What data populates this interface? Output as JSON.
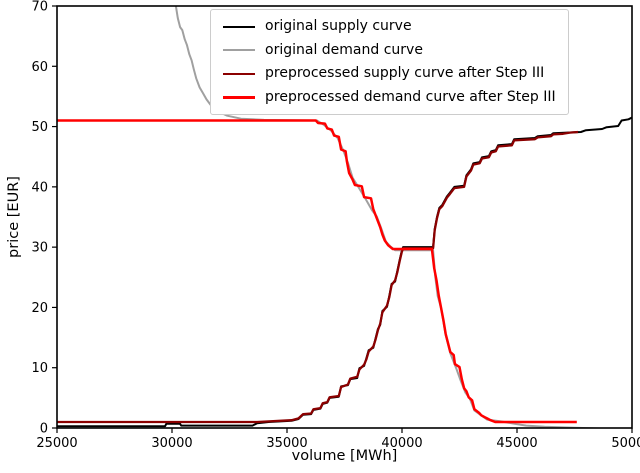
{
  "figure": {
    "background": "#ffffff",
    "border_color": "#000000"
  },
  "chart_data": {
    "type": "line",
    "title": "",
    "xlabel": "volume [MWh]",
    "ylabel": "price [EUR]",
    "xlim": [
      25000,
      50000
    ],
    "ylim": [
      0,
      70
    ],
    "xticks": [
      25000,
      30000,
      35000,
      40000,
      45000,
      50000
    ],
    "yticks": [
      0,
      10,
      20,
      30,
      40,
      50,
      60,
      70
    ],
    "grid": false,
    "legend_position": "upper center",
    "legend_frame": true,
    "series": [
      {
        "name": "original supply curve",
        "color": "#000000",
        "linewidth": 2,
        "points": [
          [
            25000,
            0.3
          ],
          [
            29700,
            0.3
          ],
          [
            29750,
            0.7
          ],
          [
            30350,
            0.7
          ],
          [
            30400,
            0.4
          ],
          [
            33500,
            0.4
          ],
          [
            33700,
            0.8
          ],
          [
            34200,
            1.0
          ],
          [
            35200,
            1.2
          ],
          [
            35500,
            1.5
          ],
          [
            35700,
            2.2
          ],
          [
            36050,
            2.3
          ],
          [
            36150,
            3.0
          ],
          [
            36450,
            3.2
          ],
          [
            36550,
            4.0
          ],
          [
            36750,
            4.2
          ],
          [
            36850,
            5.0
          ],
          [
            37250,
            5.2
          ],
          [
            37350,
            6.9
          ],
          [
            37650,
            7.1
          ],
          [
            37750,
            8.1
          ],
          [
            38050,
            8.3
          ],
          [
            38150,
            9.9
          ],
          [
            38350,
            10.3
          ],
          [
            38450,
            11.6
          ],
          [
            38550,
            12.9
          ],
          [
            38750,
            13.3
          ],
          [
            38850,
            14.9
          ],
          [
            38950,
            16.4
          ],
          [
            39050,
            17.1
          ],
          [
            39150,
            19.4
          ],
          [
            39350,
            20.1
          ],
          [
            39450,
            21.9
          ],
          [
            39550,
            23.9
          ],
          [
            39700,
            24.3
          ],
          [
            39800,
            26.1
          ],
          [
            39900,
            27.9
          ],
          [
            39990,
            29.4
          ],
          [
            40050,
            30
          ],
          [
            41350,
            30
          ],
          [
            41420,
            33
          ],
          [
            41520,
            35
          ],
          [
            41620,
            36.5
          ],
          [
            41750,
            37
          ],
          [
            41950,
            38.4
          ],
          [
            42080,
            39
          ],
          [
            42280,
            40
          ],
          [
            42700,
            40.2
          ],
          [
            42800,
            41.9
          ],
          [
            43000,
            42.9
          ],
          [
            43100,
            43.9
          ],
          [
            43380,
            44.1
          ],
          [
            43480,
            44.9
          ],
          [
            43780,
            45.1
          ],
          [
            43880,
            45.9
          ],
          [
            44080,
            46.1
          ],
          [
            44180,
            46.9
          ],
          [
            44780,
            47.1
          ],
          [
            44880,
            47.9
          ],
          [
            45780,
            48.1
          ],
          [
            45900,
            48.4
          ],
          [
            46480,
            48.6
          ],
          [
            46580,
            48.9
          ],
          [
            47780,
            49.1
          ],
          [
            48000,
            49.4
          ],
          [
            48700,
            49.6
          ],
          [
            48900,
            49.9
          ],
          [
            49400,
            50.1
          ],
          [
            49550,
            51.0
          ],
          [
            49850,
            51.2
          ],
          [
            50000,
            51.5
          ]
        ]
      },
      {
        "name": "original demand curve",
        "color": "#a0a0a0",
        "linewidth": 2,
        "points": [
          [
            30150,
            70.5
          ],
          [
            30250,
            68
          ],
          [
            30350,
            66.5
          ],
          [
            30450,
            66
          ],
          [
            30550,
            64.5
          ],
          [
            30650,
            63.5
          ],
          [
            30750,
            62
          ],
          [
            30850,
            61
          ],
          [
            30950,
            59.5
          ],
          [
            31050,
            58
          ],
          [
            31200,
            56.5
          ],
          [
            31350,
            55.5
          ],
          [
            31500,
            54.5
          ],
          [
            31700,
            53.5
          ],
          [
            32000,
            52.5
          ],
          [
            32400,
            51.8
          ],
          [
            33000,
            51.3
          ],
          [
            34000,
            51.1
          ],
          [
            36300,
            51.0
          ],
          [
            36600,
            50.3
          ],
          [
            36900,
            49.4
          ],
          [
            37200,
            48.1
          ],
          [
            37450,
            46
          ],
          [
            37650,
            44
          ],
          [
            37850,
            41.5
          ],
          [
            38100,
            40
          ],
          [
            38400,
            38.1
          ],
          [
            38700,
            36.1
          ],
          [
            38900,
            35.1
          ],
          [
            39100,
            33.1
          ],
          [
            39300,
            30.9
          ],
          [
            39500,
            30.1
          ],
          [
            39700,
            29.5
          ],
          [
            41350,
            29.5
          ],
          [
            41450,
            24.9
          ],
          [
            41550,
            21.9
          ],
          [
            41700,
            19.9
          ],
          [
            41900,
            15.4
          ],
          [
            42100,
            12.4
          ],
          [
            42350,
            10
          ],
          [
            42550,
            7.9
          ],
          [
            42750,
            5.9
          ],
          [
            42950,
            4.9
          ],
          [
            43150,
            2.9
          ],
          [
            43400,
            2.2
          ],
          [
            43700,
            1.4
          ],
          [
            44300,
            1.1
          ],
          [
            44900,
            0.7
          ],
          [
            45400,
            0.4
          ],
          [
            46200,
            0.2
          ],
          [
            47500,
            0.05
          ],
          [
            48800,
            -0.1
          ],
          [
            50000,
            -0.4
          ]
        ]
      },
      {
        "name": "preprocessed supply curve after Step III",
        "color": "#8b0000",
        "linewidth": 2.3,
        "points": [
          [
            25000,
            1.0
          ],
          [
            33700,
            1.0
          ],
          [
            34200,
            1.1
          ],
          [
            35200,
            1.3
          ],
          [
            35500,
            1.6
          ],
          [
            35700,
            2.3
          ],
          [
            36050,
            2.4
          ],
          [
            36150,
            3.1
          ],
          [
            36450,
            3.3
          ],
          [
            36550,
            4.1
          ],
          [
            36750,
            4.3
          ],
          [
            36850,
            5.1
          ],
          [
            37250,
            5.3
          ],
          [
            37350,
            6.8
          ],
          [
            37650,
            7.2
          ],
          [
            37750,
            8.2
          ],
          [
            38050,
            8.5
          ],
          [
            38150,
            9.7
          ],
          [
            38350,
            10.5
          ],
          [
            38450,
            11.4
          ],
          [
            38550,
            12.7
          ],
          [
            38750,
            13.5
          ],
          [
            38850,
            14.7
          ],
          [
            38950,
            16.2
          ],
          [
            39050,
            17.3
          ],
          [
            39150,
            19.2
          ],
          [
            39350,
            20.3
          ],
          [
            39450,
            21.7
          ],
          [
            39550,
            23.7
          ],
          [
            39700,
            24.5
          ],
          [
            39800,
            25.9
          ],
          [
            39900,
            27.7
          ],
          [
            39990,
            29.2
          ],
          [
            40050,
            29.8
          ],
          [
            41350,
            29.8
          ],
          [
            41420,
            32.8
          ],
          [
            41520,
            34.8
          ],
          [
            41620,
            36.3
          ],
          [
            41750,
            36.8
          ],
          [
            41950,
            38.2
          ],
          [
            42080,
            38.8
          ],
          [
            42280,
            39.8
          ],
          [
            42700,
            40.0
          ],
          [
            42800,
            41.7
          ],
          [
            43000,
            42.7
          ],
          [
            43100,
            43.7
          ],
          [
            43380,
            43.9
          ],
          [
            43480,
            44.7
          ],
          [
            43780,
            44.9
          ],
          [
            43880,
            45.7
          ],
          [
            44080,
            45.9
          ],
          [
            44180,
            46.7
          ],
          [
            44780,
            46.9
          ],
          [
            44880,
            47.7
          ],
          [
            45780,
            47.9
          ],
          [
            45900,
            48.2
          ],
          [
            46480,
            48.4
          ],
          [
            46580,
            48.7
          ],
          [
            47000,
            48.8
          ],
          [
            47300,
            49.0
          ],
          [
            47650,
            49.1
          ]
        ]
      },
      {
        "name": "preprocessed demand curve after Step III",
        "color": "#ff0000",
        "linewidth": 2.5,
        "points": [
          [
            25000,
            51
          ],
          [
            36250,
            51
          ],
          [
            36350,
            50.6
          ],
          [
            36650,
            50.5
          ],
          [
            36750,
            49.7
          ],
          [
            36950,
            49.5
          ],
          [
            37050,
            48.5
          ],
          [
            37250,
            48.3
          ],
          [
            37350,
            46.2
          ],
          [
            37550,
            45.9
          ],
          [
            37600,
            44.3
          ],
          [
            37700,
            42.3
          ],
          [
            37850,
            41.2
          ],
          [
            37950,
            40.3
          ],
          [
            38250,
            40.1
          ],
          [
            38350,
            38.3
          ],
          [
            38650,
            38.1
          ],
          [
            38750,
            36.3
          ],
          [
            38850,
            35.3
          ],
          [
            39050,
            33.3
          ],
          [
            39150,
            32.1
          ],
          [
            39250,
            31.1
          ],
          [
            39400,
            30.3
          ],
          [
            39600,
            29.7
          ],
          [
            41300,
            29.7
          ],
          [
            41400,
            26.5
          ],
          [
            41500,
            24.5
          ],
          [
            41600,
            21.9
          ],
          [
            41700,
            19.9
          ],
          [
            41800,
            17.9
          ],
          [
            41900,
            15.6
          ],
          [
            42000,
            14.1
          ],
          [
            42100,
            12.6
          ],
          [
            42250,
            12.1
          ],
          [
            42300,
            10.6
          ],
          [
            42500,
            10.1
          ],
          [
            42600,
            8.1
          ],
          [
            42700,
            6.6
          ],
          [
            42800,
            6.1
          ],
          [
            42900,
            5.1
          ],
          [
            43050,
            4.6
          ],
          [
            43150,
            3.1
          ],
          [
            43350,
            2.5
          ],
          [
            43450,
            2.1
          ],
          [
            43650,
            1.7
          ],
          [
            43850,
            1.3
          ],
          [
            44050,
            1.0
          ],
          [
            47600,
            1.0
          ]
        ]
      }
    ]
  }
}
